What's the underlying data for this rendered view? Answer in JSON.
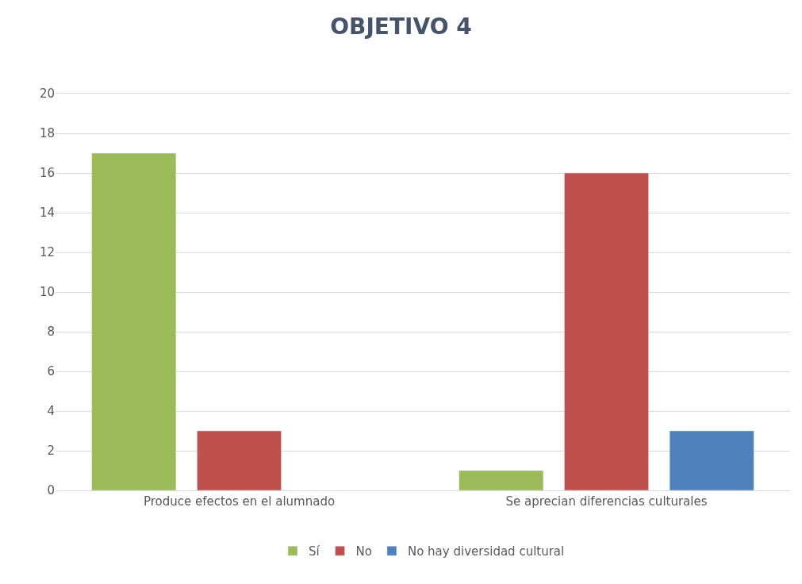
{
  "chart_data": {
    "type": "bar",
    "title": "OBJETIVO 4",
    "categories": [
      "Produce efectos en el alumnado",
      "Se aprecian diferencias culturales"
    ],
    "series": [
      {
        "name": "Sí",
        "color": "#9bbb59",
        "values": [
          17,
          1
        ]
      },
      {
        "name": "No",
        "color": "#c0504d",
        "values": [
          3,
          16
        ]
      },
      {
        "name": "No hay diversidad cultural",
        "color": "#4f81bd",
        "values": [
          null,
          3
        ]
      }
    ],
    "ylim": [
      0,
      20
    ],
    "yticks": [
      0,
      2,
      4,
      6,
      8,
      10,
      12,
      14,
      16,
      18,
      20
    ],
    "grid": "y",
    "legend": "bottom"
  }
}
